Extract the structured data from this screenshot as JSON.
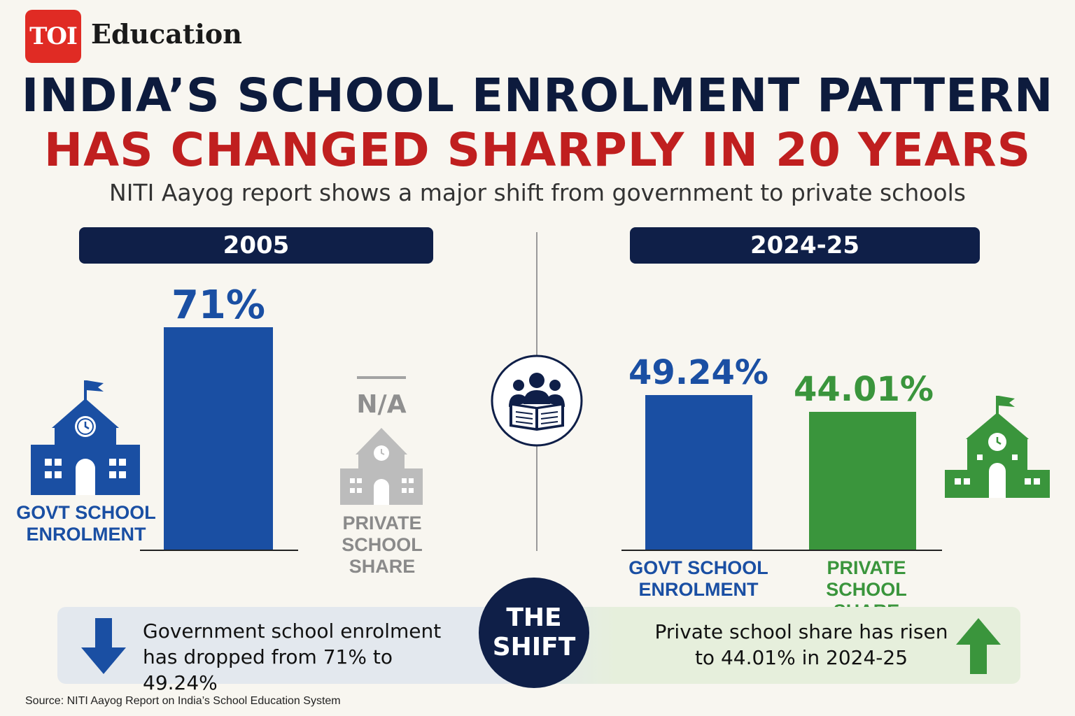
{
  "brand": {
    "logo": "TOI",
    "name": "Education"
  },
  "title_line1": "INDIA’S SCHOOL ENROLMENT PATTERN",
  "title_line2": "HAS CHANGED SHARPLY IN 20 YEARS",
  "subtitle": "NITI Aayog report shows a major shift from government to private schools",
  "colors": {
    "govt": "#1a4fa3",
    "private": "#3a953c",
    "na": "#a3a3a3",
    "headline_red": "#c01f1f",
    "navy": "#0f1f48"
  },
  "chart_data": [
    {
      "type": "bar",
      "title": "2005",
      "categories": [
        "GOVT SCHOOL\nENROLMENT",
        "PRIVATE SCHOOL\nSHARE"
      ],
      "values": [
        71,
        null
      ],
      "value_labels": [
        "71%",
        "N/A"
      ],
      "unit": "%"
    },
    {
      "type": "bar",
      "title": "2024-25",
      "categories": [
        "GOVT SCHOOL\nENROLMENT",
        "PRIVATE SCHOOL\nSHARE"
      ],
      "values": [
        49.24,
        44.01
      ],
      "value_labels": [
        "49.24%",
        "44.01%"
      ],
      "unit": "%"
    }
  ],
  "labels": {
    "govt_line1": "GOVT SCHOOL",
    "govt_line2": "ENROLMENT",
    "private_line1": "PRIVATE SCHOOL",
    "private_line2": "SHARE"
  },
  "shift": {
    "badge_line1": "THE",
    "badge_line2": "SHIFT",
    "left_line1": "Government school enrolment",
    "left_line2": "has dropped from 71% to 49.24%",
    "right_line1": "Private school share has risen",
    "right_line2": "to 44.01% in 2024-25"
  },
  "icons": [
    "school-building-icon",
    "students-reading-icon",
    "arrow-down-icon",
    "arrow-up-icon"
  ],
  "source": "Source: NITI Aayog Report on India’s School Education System"
}
